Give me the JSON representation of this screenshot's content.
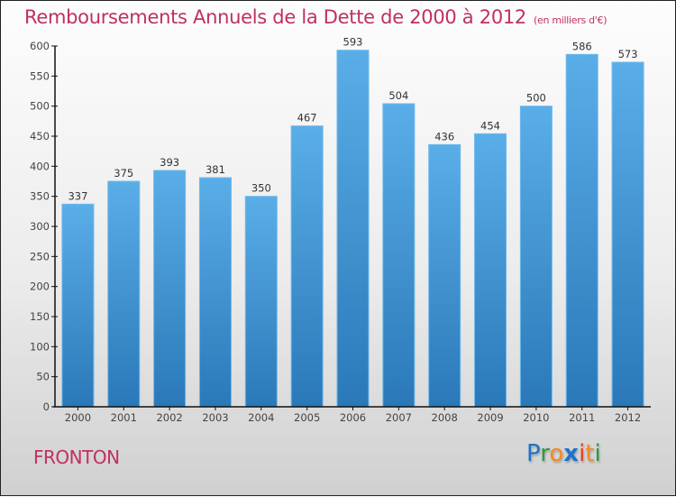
{
  "title": "Remboursements Annuels de la Dette de 2000 à 2012",
  "subtitle": "(en milliers d'€)",
  "location": "FRONTON",
  "logo": {
    "letters": [
      {
        "ch": "P",
        "color": "#1e73c8"
      },
      {
        "ch": "r",
        "color": "#2e9b3c"
      },
      {
        "ch": "o",
        "color": "#f58a1f"
      },
      {
        "ch": "x",
        "color": "#1e73c8"
      },
      {
        "ch": "i",
        "color": "#e8402a"
      },
      {
        "ch": "t",
        "color": "#f58a1f"
      },
      {
        "ch": "i",
        "color": "#2e9b3c"
      }
    ]
  },
  "colors": {
    "title": "#c0305e",
    "bar_top": "#5aaee8",
    "bar_bottom": "#2a78b8"
  },
  "chart_data": {
    "type": "bar",
    "title": "Remboursements Annuels de la Dette de 2000 à 2012",
    "subtitle": "(en milliers d'€)",
    "xlabel": "",
    "ylabel": "",
    "categories": [
      "2000",
      "2001",
      "2002",
      "2003",
      "2004",
      "2005",
      "2006",
      "2007",
      "2008",
      "2009",
      "2010",
      "2011",
      "2012"
    ],
    "values": [
      337,
      375,
      393,
      381,
      350,
      467,
      593,
      504,
      436,
      454,
      500,
      586,
      573
    ],
    "ylim": [
      0,
      600
    ],
    "yticks": [
      0,
      50,
      100,
      150,
      200,
      250,
      300,
      350,
      400,
      450,
      500,
      550,
      600
    ],
    "grid": false,
    "legend": "none"
  }
}
